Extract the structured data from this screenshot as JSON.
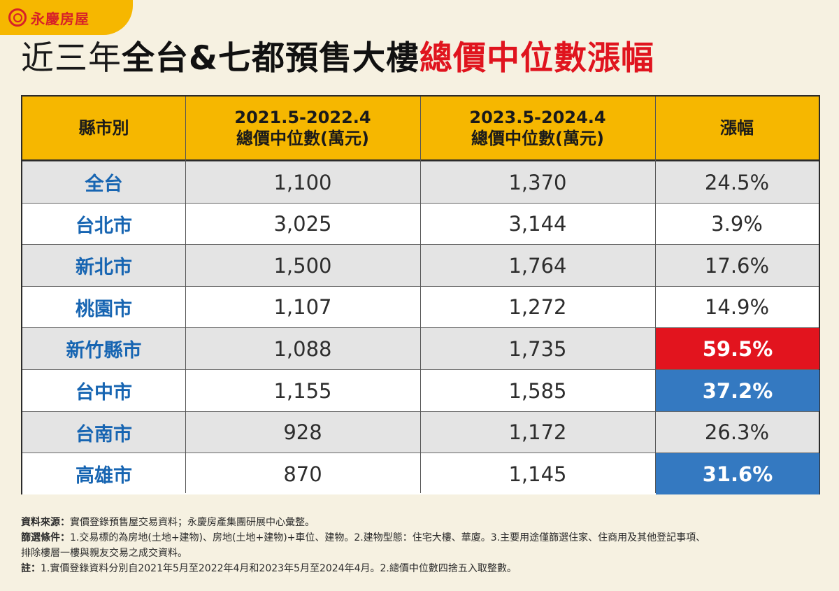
{
  "brand": {
    "name": "永慶房屋"
  },
  "title": {
    "part1": "近三年",
    "part2": "全台&七都預售大樓",
    "part3": "總價中位數漲幅"
  },
  "table": {
    "headers": {
      "col1": "縣市別",
      "col2_line1": "2021.5-2022.4",
      "col2_line2": "總價中位數(萬元)",
      "col3_line1": "2023.5-2024.4",
      "col3_line2": "總價中位數(萬元)",
      "col4": "漲幅"
    },
    "rows": [
      {
        "city": "全台",
        "before": "1,100",
        "after": "1,370",
        "change": "24.5%"
      },
      {
        "city": "台北市",
        "before": "3,025",
        "after": "3,144",
        "change": "3.9%"
      },
      {
        "city": "新北市",
        "before": "1,500",
        "after": "1,764",
        "change": "17.6%"
      },
      {
        "city": "桃園市",
        "before": "1,107",
        "after": "1,272",
        "change": "14.9%"
      },
      {
        "city": "新竹縣市",
        "before": "1,088",
        "after": "1,735",
        "change": "59.5%"
      },
      {
        "city": "台中市",
        "before": "1,155",
        "after": "1,585",
        "change": "37.2%"
      },
      {
        "city": "台南市",
        "before": "928",
        "after": "1,172",
        "change": "26.3%"
      },
      {
        "city": "高雄市",
        "before": "870",
        "after": "1,145",
        "change": "31.6%"
      }
    ]
  },
  "notes": {
    "source_label": "資料來源：",
    "source_text": "實價登錄預售屋交易資料；永慶房產集團研展中心彙整。",
    "filter_label": "篩選條件：",
    "filter_text": "1.交易標的為房地(土地+建物)、房地(土地+建物)+車位、建物。2.建物型態：住宅大樓、華廈。3.主要用途僅篩選住家、住商用及其他登記事項、",
    "filter_text2": "排除樓層一樓與親友交易之成交資料。",
    "note_label": "註：",
    "note_text": "1.實價登錄資料分別自2021年5月至2022年4月和2023年5月至2024年4月。2.總價中位數四捨五入取整數。"
  },
  "colors": {
    "header_bg": "#f6b700",
    "city_text": "#1765b2",
    "highlight_red": "#e2141e",
    "highlight_blue": "#3479c1",
    "title_red": "#e0141e",
    "page_bg": "#f6f1e1"
  },
  "chart_data": {
    "type": "table",
    "title": "近三年全台&七都預售大樓總價中位數漲幅",
    "columns": [
      "縣市別",
      "2021.5-2022.4 總價中位數(萬元)",
      "2023.5-2024.4 總價中位數(萬元)",
      "漲幅"
    ],
    "categories": [
      "全台",
      "台北市",
      "新北市",
      "桃園市",
      "新竹縣市",
      "台中市",
      "台南市",
      "高雄市"
    ],
    "series": [
      {
        "name": "2021.5-2022.4 總價中位數(萬元)",
        "values": [
          1100,
          3025,
          1500,
          1107,
          1088,
          1155,
          928,
          870
        ]
      },
      {
        "name": "2023.5-2024.4 總價中位數(萬元)",
        "values": [
          1370,
          3144,
          1764,
          1272,
          1735,
          1585,
          1172,
          1145
        ]
      },
      {
        "name": "漲幅",
        "values": [
          24.5,
          3.9,
          17.6,
          14.9,
          59.5,
          37.2,
          26.3,
          31.6
        ],
        "unit": "%"
      }
    ],
    "highlights": {
      "新竹縣市": "red",
      "台中市": "blue",
      "高雄市": "blue"
    }
  }
}
